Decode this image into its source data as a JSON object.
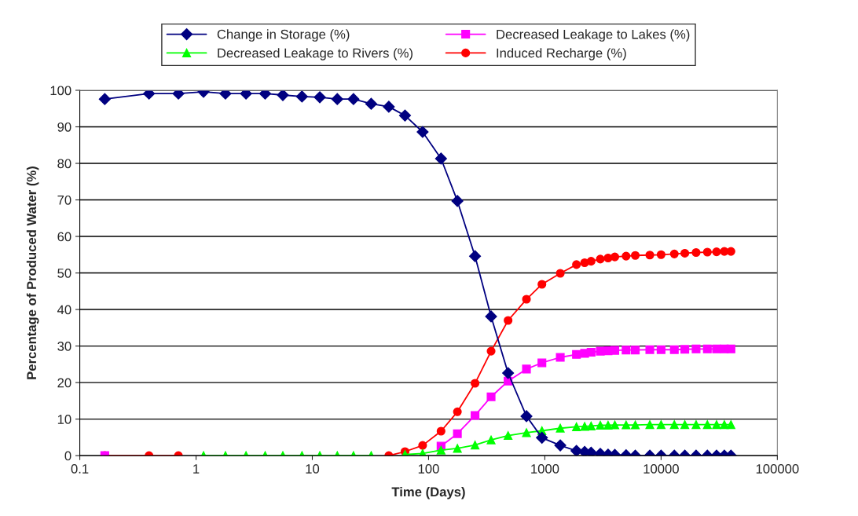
{
  "chart_data": {
    "type": "line",
    "xlabel": "Time (Days)",
    "ylabel": "Percentage of Produced Water (%)",
    "x": [
      0.164,
      0.394,
      0.705,
      1.16,
      1.79,
      2.69,
      3.93,
      5.58,
      8.15,
      11.6,
      16.4,
      22.6,
      32.1,
      45.5,
      62.7,
      88.9,
      128,
      177,
      251,
      345,
      483,
      695,
      944,
      1358,
      1871,
      2200,
      2500,
      3000,
      3500,
      4000,
      5000,
      6000,
      8000,
      10000,
      13000,
      16000,
      20000,
      25000,
      30000,
      35000,
      39900
    ],
    "series": [
      {
        "name": "Change in Storage (%)",
        "color": "#000080",
        "marker": "diamond",
        "values": [
          97.6,
          99.1,
          99.1,
          99.6,
          99.1,
          99.1,
          99.1,
          98.7,
          98.3,
          98.1,
          97.6,
          97.6,
          96.3,
          95.5,
          93.1,
          88.6,
          81.3,
          69.7,
          54.6,
          38.1,
          22.6,
          10.8,
          4.9,
          2.8,
          1.3,
          1.0,
          0.8,
          0.5,
          0.3,
          0.2,
          0.1,
          0,
          0,
          0,
          0,
          0,
          0,
          0,
          0,
          0,
          0
        ]
      },
      {
        "name": "Decreased Leakage to Rivers (%)",
        "color": "#00ff00",
        "marker": "triangle",
        "values": [
          null,
          null,
          null,
          0,
          0,
          0,
          0,
          0,
          0,
          0,
          0,
          0,
          0,
          null,
          0.3,
          0.6,
          1.5,
          2.0,
          2.9,
          4.3,
          5.5,
          6.3,
          6.8,
          7.5,
          7.9,
          8.0,
          8.1,
          8.3,
          8.3,
          8.4,
          8.4,
          8.4,
          8.5,
          8.5,
          8.5,
          8.5,
          8.5,
          8.5,
          8.5,
          8.5,
          8.5
        ]
      },
      {
        "name": "Decreased Leakage to Lakes (%)",
        "color": "#ff00ff",
        "marker": "square",
        "values": [
          0,
          null,
          null,
          null,
          null,
          null,
          null,
          null,
          null,
          null,
          null,
          null,
          null,
          null,
          null,
          null,
          2.6,
          6.0,
          11.0,
          16.1,
          20.4,
          23.7,
          25.4,
          26.9,
          27.7,
          28.0,
          28.3,
          28.6,
          28.7,
          28.8,
          28.9,
          28.9,
          29.0,
          29.0,
          29.0,
          29.1,
          29.2,
          29.2,
          29.2,
          29.2,
          29.2
        ]
      },
      {
        "name": "Induced Recharge (%)",
        "color": "#ff0000",
        "marker": "circle",
        "values": [
          0,
          0,
          0,
          null,
          null,
          null,
          null,
          null,
          null,
          null,
          null,
          null,
          null,
          0,
          1.1,
          2.8,
          6.7,
          12.0,
          19.8,
          28.6,
          37.0,
          42.8,
          46.9,
          49.9,
          52.3,
          52.8,
          53.2,
          53.8,
          54.1,
          54.4,
          54.6,
          54.8,
          54.9,
          55.0,
          55.2,
          55.4,
          55.6,
          55.7,
          55.8,
          55.9,
          55.9
        ]
      }
    ],
    "log": "x",
    "xlim": [
      0.1,
      100000
    ],
    "xticks": [
      0.1,
      1,
      10,
      100,
      1000,
      10000,
      100000
    ],
    "ylim": [
      0,
      100
    ],
    "yticks": [
      0,
      10,
      20,
      30,
      40,
      50,
      60,
      70,
      80,
      90,
      100
    ],
    "grid": "y",
    "legend": "top",
    "line_style": "solid"
  }
}
